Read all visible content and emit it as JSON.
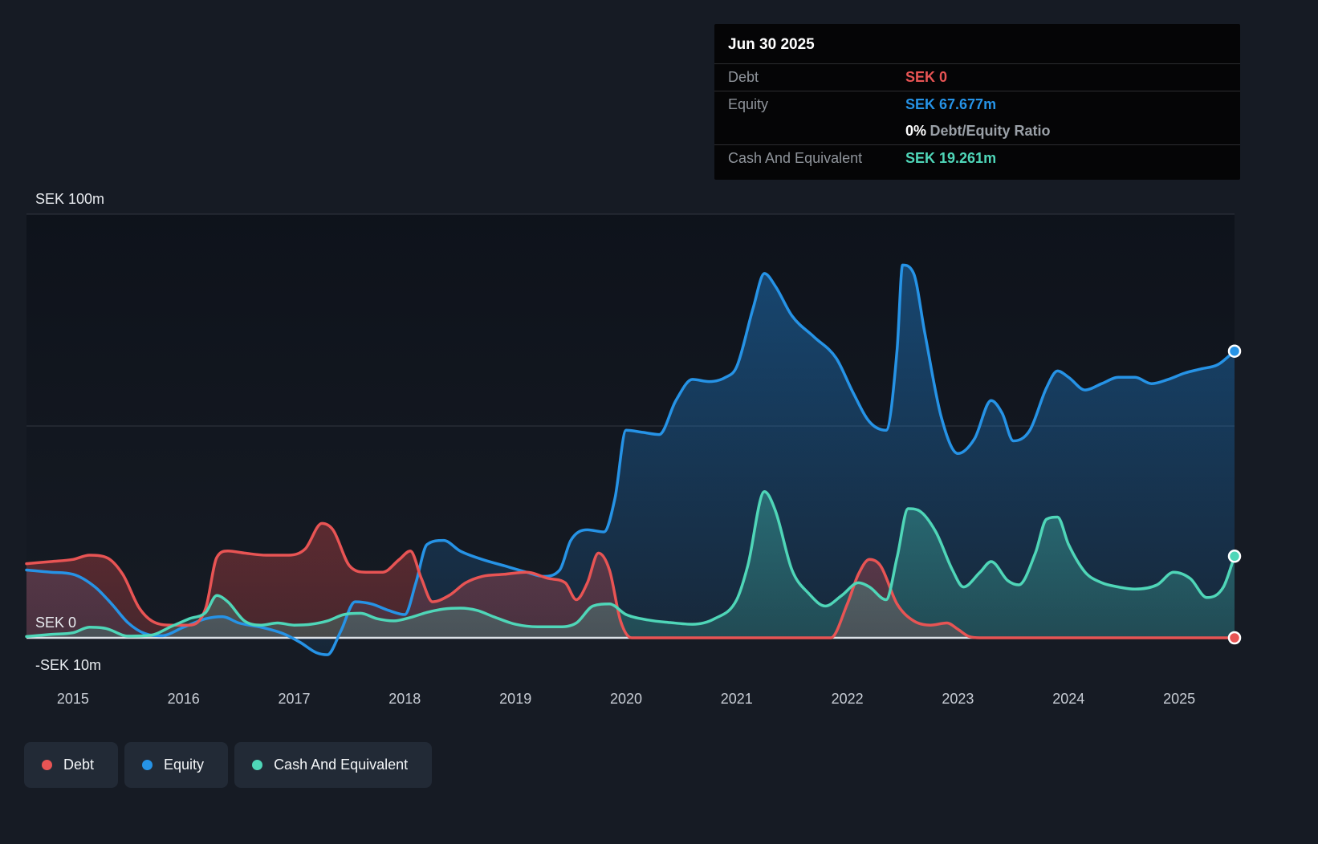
{
  "page": {
    "background": "#161b24"
  },
  "tooltip": {
    "date": "Jun 30 2025",
    "debt": {
      "label": "Debt",
      "value": "SEK 0"
    },
    "equity": {
      "label": "Equity",
      "value": "SEK 67.677m"
    },
    "ratio": {
      "value": "0%",
      "label": "Debt/Equity Ratio"
    },
    "cash": {
      "label": "Cash And Equivalent",
      "value": "SEK 19.261m"
    }
  },
  "legend": {
    "items": [
      {
        "label": "Debt",
        "color": "#e85454"
      },
      {
        "label": "Equity",
        "color": "#2693e6"
      },
      {
        "label": "Cash And Equivalent",
        "color": "#4fd6b8"
      }
    ]
  },
  "chart_data": {
    "type": "area",
    "currency": "SEK",
    "unit": "m",
    "xlim": [
      2014.58,
      2025.5
    ],
    "ylim": [
      -10,
      100
    ],
    "x_ticks": [
      2015,
      2016,
      2017,
      2018,
      2019,
      2020,
      2021,
      2022,
      2023,
      2024,
      2025
    ],
    "y_ticks": [
      {
        "value": 100,
        "label": "SEK 100m"
      },
      {
        "value": 0,
        "label": "SEK 0"
      },
      {
        "value": -10,
        "label": "-SEK 10m"
      }
    ],
    "gridlines": [
      100,
      50
    ],
    "zero_line": 0,
    "legend_position": "bottom-left",
    "series": [
      {
        "name": "Equity",
        "color": "#2693e6",
        "fill_top": "rgba(34,140,228,0.42)",
        "fill_bottom": "rgba(34,140,228,0.10)",
        "end_value": 67.677,
        "points": [
          [
            2014.58,
            16
          ],
          [
            2014.8,
            15.5
          ],
          [
            2015.0,
            15
          ],
          [
            2015.2,
            12
          ],
          [
            2015.35,
            8
          ],
          [
            2015.5,
            3.5
          ],
          [
            2015.65,
            1
          ],
          [
            2015.8,
            0.5
          ],
          [
            2016.0,
            2.5
          ],
          [
            2016.2,
            4.5
          ],
          [
            2016.35,
            5
          ],
          [
            2016.5,
            3.5
          ],
          [
            2016.7,
            2.5
          ],
          [
            2016.9,
            1
          ],
          [
            2017.05,
            -1
          ],
          [
            2017.2,
            -3.5
          ],
          [
            2017.3,
            -4
          ],
          [
            2017.42,
            1.5
          ],
          [
            2017.55,
            8.5
          ],
          [
            2017.7,
            8
          ],
          [
            2017.85,
            6.5
          ],
          [
            2018.0,
            5.5
          ],
          [
            2018.1,
            13
          ],
          [
            2018.2,
            22
          ],
          [
            2018.35,
            23
          ],
          [
            2018.5,
            20.5
          ],
          [
            2018.7,
            18.5
          ],
          [
            2018.9,
            17
          ],
          [
            2019.1,
            15.5
          ],
          [
            2019.25,
            14.5
          ],
          [
            2019.4,
            16
          ],
          [
            2019.5,
            23
          ],
          [
            2019.65,
            25.5
          ],
          [
            2019.8,
            25
          ],
          [
            2019.9,
            33
          ],
          [
            2020.0,
            49
          ],
          [
            2020.15,
            48.5
          ],
          [
            2020.3,
            48
          ],
          [
            2020.45,
            56
          ],
          [
            2020.6,
            61
          ],
          [
            2020.75,
            60.5
          ],
          [
            2020.9,
            61.5
          ],
          [
            2021.0,
            64
          ],
          [
            2021.15,
            78
          ],
          [
            2021.25,
            86
          ],
          [
            2021.35,
            83
          ],
          [
            2021.5,
            76
          ],
          [
            2021.7,
            71
          ],
          [
            2021.9,
            66
          ],
          [
            2022.05,
            58
          ],
          [
            2022.2,
            51
          ],
          [
            2022.35,
            49
          ],
          [
            2022.45,
            68
          ],
          [
            2022.5,
            88
          ],
          [
            2022.6,
            86
          ],
          [
            2022.7,
            72
          ],
          [
            2022.85,
            52
          ],
          [
            2023.0,
            43.5
          ],
          [
            2023.15,
            47
          ],
          [
            2023.3,
            56
          ],
          [
            2023.4,
            53
          ],
          [
            2023.5,
            46.5
          ],
          [
            2023.65,
            49
          ],
          [
            2023.8,
            59
          ],
          [
            2023.9,
            63
          ],
          [
            2024.0,
            61.5
          ],
          [
            2024.15,
            58.5
          ],
          [
            2024.3,
            60
          ],
          [
            2024.45,
            61.5
          ],
          [
            2024.6,
            61.5
          ],
          [
            2024.75,
            60
          ],
          [
            2024.9,
            61
          ],
          [
            2025.05,
            62.5
          ],
          [
            2025.2,
            63.5
          ],
          [
            2025.35,
            64.5
          ],
          [
            2025.5,
            67.677
          ]
        ]
      },
      {
        "name": "Debt",
        "color": "#e85454",
        "fill_top": "rgba(230,77,77,0.34)",
        "fill_bottom": "rgba(230,77,77,0.24)",
        "end_value": 0,
        "points": [
          [
            2014.58,
            17.5
          ],
          [
            2014.8,
            18
          ],
          [
            2015.0,
            18.5
          ],
          [
            2015.15,
            19.5
          ],
          [
            2015.3,
            19
          ],
          [
            2015.45,
            15
          ],
          [
            2015.6,
            7
          ],
          [
            2015.75,
            3.5
          ],
          [
            2015.9,
            3
          ],
          [
            2016.05,
            3
          ],
          [
            2016.2,
            7
          ],
          [
            2016.3,
            19
          ],
          [
            2016.4,
            20.5
          ],
          [
            2016.55,
            20
          ],
          [
            2016.75,
            19.5
          ],
          [
            2016.95,
            19.5
          ],
          [
            2017.1,
            21
          ],
          [
            2017.25,
            27
          ],
          [
            2017.35,
            25.5
          ],
          [
            2017.5,
            17
          ],
          [
            2017.65,
            15.5
          ],
          [
            2017.8,
            15.5
          ],
          [
            2017.95,
            18.5
          ],
          [
            2018.05,
            20.5
          ],
          [
            2018.15,
            14
          ],
          [
            2018.25,
            8.5
          ],
          [
            2018.4,
            10
          ],
          [
            2018.55,
            13
          ],
          [
            2018.7,
            14.5
          ],
          [
            2018.9,
            15
          ],
          [
            2019.1,
            15.5
          ],
          [
            2019.3,
            14
          ],
          [
            2019.45,
            13
          ],
          [
            2019.55,
            9
          ],
          [
            2019.65,
            13
          ],
          [
            2019.75,
            20
          ],
          [
            2019.85,
            16
          ],
          [
            2019.95,
            4
          ],
          [
            2020.05,
            0
          ],
          [
            2020.5,
            0
          ],
          [
            2021.0,
            0
          ],
          [
            2021.5,
            0
          ],
          [
            2021.85,
            0
          ],
          [
            2022.0,
            8
          ],
          [
            2022.1,
            15
          ],
          [
            2022.2,
            18.5
          ],
          [
            2022.3,
            17
          ],
          [
            2022.45,
            8
          ],
          [
            2022.6,
            4
          ],
          [
            2022.75,
            3
          ],
          [
            2022.9,
            3.5
          ],
          [
            2023.0,
            2
          ],
          [
            2023.1,
            0.3
          ],
          [
            2023.2,
            0
          ],
          [
            2023.6,
            0
          ],
          [
            2024.0,
            0
          ],
          [
            2024.5,
            0
          ],
          [
            2025.0,
            0
          ],
          [
            2025.5,
            0
          ]
        ]
      },
      {
        "name": "Cash And Equivalent",
        "color": "#4fd6b8",
        "fill_top": "rgba(74,212,186,0.34)",
        "fill_bottom": "rgba(74,212,186,0.20)",
        "end_value": 19.261,
        "points": [
          [
            2014.58,
            0.3
          ],
          [
            2014.8,
            0.8
          ],
          [
            2015.0,
            1.2
          ],
          [
            2015.15,
            2.5
          ],
          [
            2015.3,
            2.2
          ],
          [
            2015.5,
            0.4
          ],
          [
            2015.7,
            0.6
          ],
          [
            2015.9,
            2.8
          ],
          [
            2016.05,
            4.5
          ],
          [
            2016.2,
            6
          ],
          [
            2016.3,
            10
          ],
          [
            2016.4,
            8.5
          ],
          [
            2016.55,
            4
          ],
          [
            2016.7,
            3
          ],
          [
            2016.85,
            3.5
          ],
          [
            2017.0,
            3
          ],
          [
            2017.15,
            3.2
          ],
          [
            2017.3,
            4
          ],
          [
            2017.45,
            5.5
          ],
          [
            2017.6,
            5.8
          ],
          [
            2017.75,
            4.5
          ],
          [
            2017.9,
            4
          ],
          [
            2018.05,
            4.8
          ],
          [
            2018.2,
            6
          ],
          [
            2018.35,
            6.8
          ],
          [
            2018.5,
            7
          ],
          [
            2018.65,
            6.5
          ],
          [
            2018.8,
            5
          ],
          [
            2019.0,
            3.2
          ],
          [
            2019.2,
            2.6
          ],
          [
            2019.4,
            2.6
          ],
          [
            2019.55,
            3.5
          ],
          [
            2019.7,
            7.5
          ],
          [
            2019.85,
            8
          ],
          [
            2020.0,
            5.5
          ],
          [
            2020.2,
            4.2
          ],
          [
            2020.4,
            3.6
          ],
          [
            2020.6,
            3.2
          ],
          [
            2020.8,
            4.5
          ],
          [
            2021.0,
            9
          ],
          [
            2021.1,
            17
          ],
          [
            2021.25,
            34.5
          ],
          [
            2021.35,
            30
          ],
          [
            2021.5,
            16
          ],
          [
            2021.65,
            10.5
          ],
          [
            2021.8,
            7.5
          ],
          [
            2021.95,
            10
          ],
          [
            2022.1,
            13
          ],
          [
            2022.2,
            12
          ],
          [
            2022.35,
            9
          ],
          [
            2022.45,
            19
          ],
          [
            2022.55,
            30.5
          ],
          [
            2022.65,
            30
          ],
          [
            2022.8,
            25
          ],
          [
            2022.95,
            16
          ],
          [
            2023.05,
            12
          ],
          [
            2023.2,
            15.5
          ],
          [
            2023.3,
            18
          ],
          [
            2023.45,
            13.5
          ],
          [
            2023.55,
            12.5
          ],
          [
            2023.7,
            20
          ],
          [
            2023.8,
            28
          ],
          [
            2023.9,
            28.5
          ],
          [
            2024.0,
            22
          ],
          [
            2024.15,
            15.5
          ],
          [
            2024.3,
            13
          ],
          [
            2024.45,
            12
          ],
          [
            2024.6,
            11.5
          ],
          [
            2024.8,
            12.5
          ],
          [
            2024.95,
            15.5
          ],
          [
            2025.1,
            14
          ],
          [
            2025.25,
            9.5
          ],
          [
            2025.4,
            12
          ],
          [
            2025.5,
            19.261
          ]
        ]
      }
    ]
  }
}
